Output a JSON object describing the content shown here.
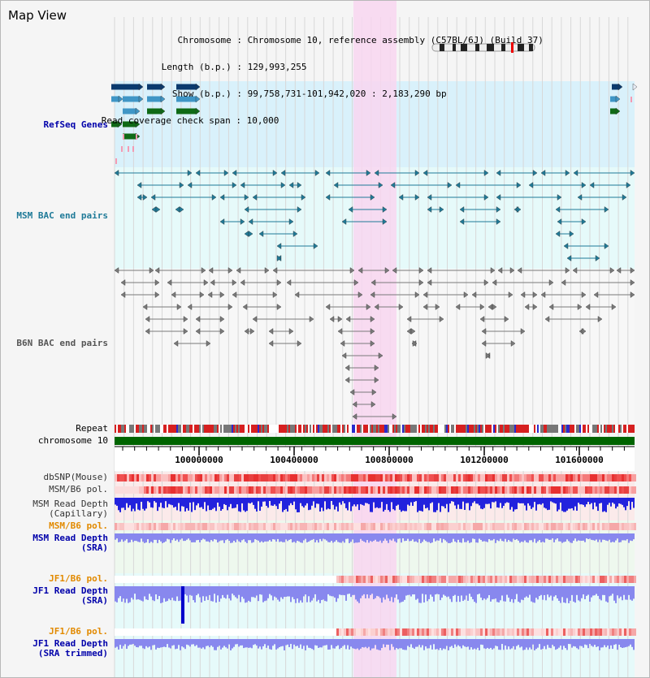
{
  "view_title": "Map View",
  "info": {
    "chromosome_key": "Chromosome",
    "chromosome_value": "Chromosome 10, reference assembly (C57BL/6J) (Build 37)",
    "length_key": "Length (b.p.)",
    "length_value": "129,993,255",
    "show_key": "Show (b.p.)",
    "show_value": "99,758,731-101,942,020 : 2,183,290 bp",
    "span_key": "Read coverage check span",
    "span_value": "10,000"
  },
  "tracks": {
    "refseq": "RefSeq Genes",
    "msm_bac": "MSM BAC end pairs",
    "b6n_bac": "B6N BAC end pairs",
    "repeat": "Repeat",
    "chromosome": "chromosome 10",
    "dbsnp": "dbSNP(Mouse)",
    "msm_pol_1": "MSM/B6 pol.",
    "msm_depth_cap_1": "MSM Read Depth",
    "msm_depth_cap_2": "(Capillary)",
    "msm_pol_2": "MSM/B6 pol.",
    "msm_depth_sra_1": "MSM Read Depth",
    "msm_depth_sra_2": "(SRA)",
    "jf1_pol_1": "JF1/B6 pol.",
    "jf1_depth_1": "JF1 Read Depth",
    "jf1_depth_2": "(SRA)",
    "jf1_pol_2": "JF1/B6 pol.",
    "jf1_trim_1": "JF1 Read Depth",
    "jf1_trim_2": "(SRA trimmed)"
  },
  "ruler": {
    "ticks": [
      "100000000",
      "100400000",
      "100800000",
      "101200000",
      "101600000"
    ]
  },
  "colors": {
    "refseq_bg": "#d9f1fb",
    "bac_bg": "#e6fafa",
    "gene_dark": "#0a3a6e",
    "gene_light": "#3f96c6",
    "gene_green": "#0f6a16",
    "gene_pink": "#f49bb3",
    "msm_bac": "#1f7a98",
    "b6n_bac": "#7a7a7a",
    "highlight": "#f8d6f0",
    "chromosome_bar": "#006400",
    "depth_blue": "#2222dd",
    "depth_light": "#8888ee",
    "label_blue": "#0000aa",
    "label_orange": "#e28a00"
  }
}
